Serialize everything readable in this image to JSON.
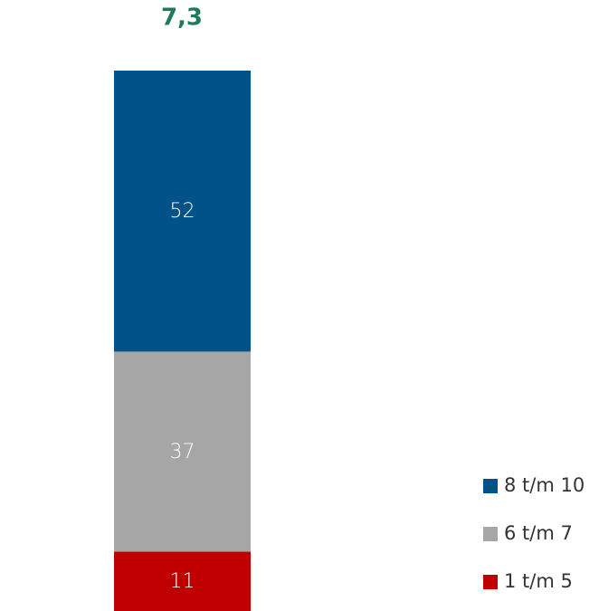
{
  "chart_data": {
    "type": "stacked-bar",
    "annotation": "7,3",
    "categories": [
      null
    ],
    "series": [
      {
        "name": "1 t/m 5",
        "color": "#c00000",
        "values": [
          11
        ]
      },
      {
        "name": "6 t/m 7",
        "color": "#a6a6a6",
        "values": [
          37
        ]
      },
      {
        "name": "8 t/m 10",
        "color": "#005288",
        "values": [
          52
        ]
      }
    ],
    "value_labels_color": "#ffffff"
  }
}
